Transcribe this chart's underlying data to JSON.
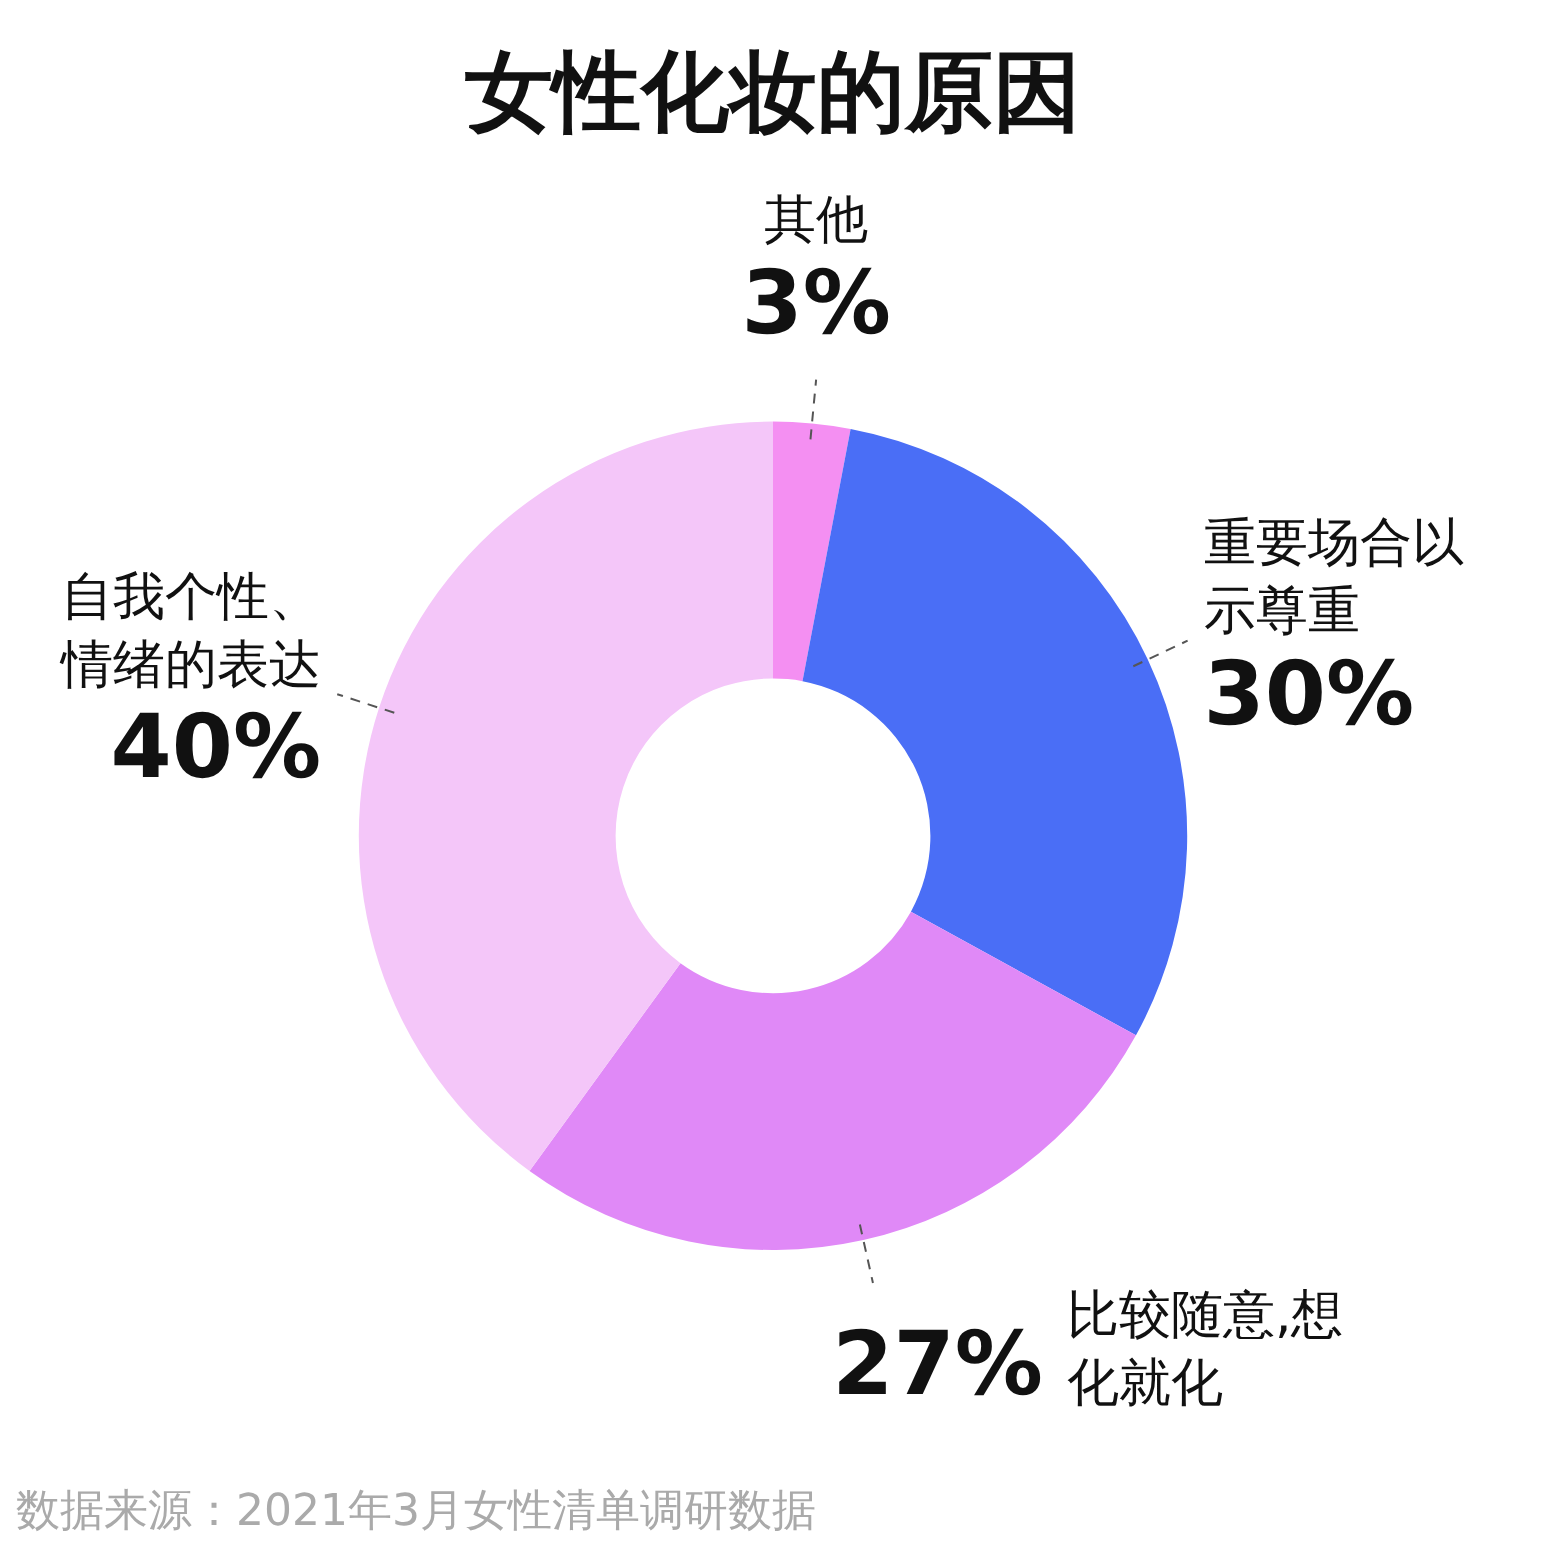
{
  "chart_data": {
    "type": "donut",
    "title": "女性化妆的原因",
    "categories": [
      "其他",
      "重要场合以示尊重",
      "比较随意,想化就化",
      "自我个性、情绪的表达"
    ],
    "values": [
      3,
      30,
      27,
      40
    ],
    "value_labels": [
      "3%",
      "30%",
      "27%",
      "40%"
    ],
    "colors": [
      "#f48ff2",
      "#4a6ef6",
      "#e089f7",
      "#f4c6f9"
    ],
    "legend": false,
    "annotations": [
      "数据来源：2021年3月女性清单调研数据"
    ]
  }
}
